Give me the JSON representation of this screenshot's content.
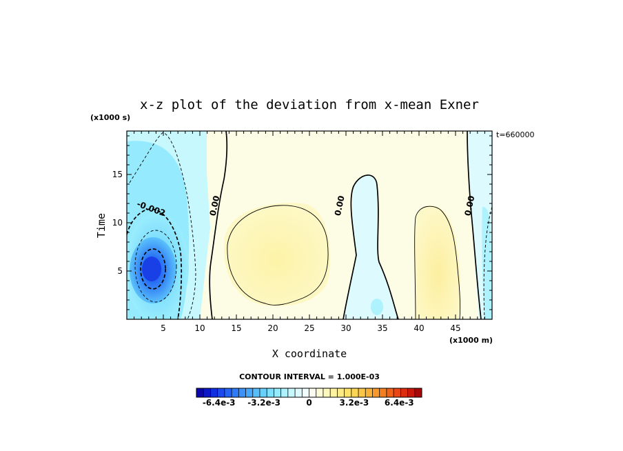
{
  "chart_data": {
    "type": "heatmap",
    "title": "x-z plot of the deviation from x-mean Exner",
    "xlabel": "X coordinate",
    "ylabel": "Time",
    "x_unit": "(x1000 m)",
    "y_unit": "(x1000 s)",
    "time_stamp": "t=660000",
    "xlim": [
      0,
      50
    ],
    "ylim": [
      0,
      19.5
    ],
    "x_ticks": [
      "5",
      "10",
      "15",
      "20",
      "25",
      "30",
      "35",
      "40",
      "45"
    ],
    "y_ticks": [
      "5",
      "10",
      "15"
    ],
    "contour_interval_text": "CONTOUR INTERVAL = 1.000E-03",
    "contour_labels": [
      {
        "text": "-0.002",
        "x": 3.2,
        "y": 11.2
      },
      {
        "text": "0.00",
        "x": 12.4,
        "y": 11.7
      },
      {
        "text": "0.00",
        "x": 29.5,
        "y": 11.7
      },
      {
        "text": "0.00",
        "x": 47.3,
        "y": 11.7
      }
    ],
    "features": [
      {
        "name": "negative minimum",
        "x": 3.4,
        "y": 5.4,
        "value": -0.0055
      },
      {
        "name": "positive maximum",
        "x": 21.0,
        "y": 6.5,
        "value": 0.0015
      },
      {
        "name": "negative band",
        "x": 33.5,
        "y": 10.0,
        "value": -0.0005
      },
      {
        "name": "positive maximum",
        "x": 43.0,
        "y": 4.0,
        "value": 0.0015
      }
    ],
    "colorbar": {
      "min": -0.008,
      "max": 0.008,
      "ticks": [
        "-6.4e-3",
        "-3.2e-3",
        "0",
        "3.2e-3",
        "6.4e-3"
      ],
      "tick_values": [
        -0.0064,
        -0.0032,
        0,
        0.0032,
        0.0064
      ],
      "colors": [
        "#0b07a8",
        "#0d19c6",
        "#1030e0",
        "#1b49ee",
        "#2563f5",
        "#2e7af8",
        "#3a92fa",
        "#48a8fb",
        "#58bdfb",
        "#68d0fc",
        "#7ee0fc",
        "#95ebfd",
        "#aef2fd",
        "#c6f8fe",
        "#ddfbfe",
        "#f0fdfe",
        "#fdfdf0",
        "#fdfbd5",
        "#fdf8bb",
        "#fdf3a0",
        "#fdec86",
        "#fde26c",
        "#fcd556",
        "#fbc545",
        "#f9b138",
        "#f7992c",
        "#f47f22",
        "#ef631a",
        "#e84615",
        "#dd2c10",
        "#c9170c",
        "#a80707"
      ]
    }
  }
}
